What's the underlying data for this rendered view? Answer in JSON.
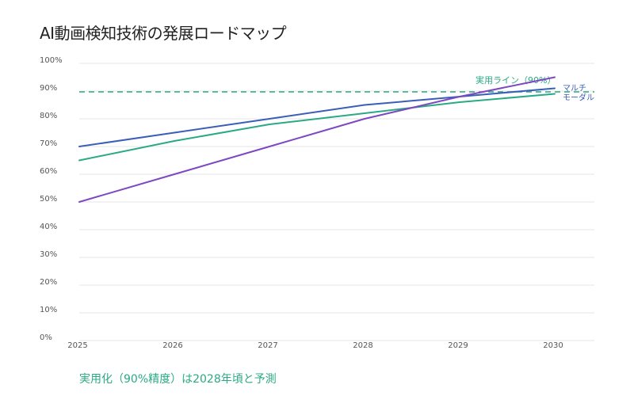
{
  "chart_data": {
    "type": "line",
    "title": "AI動画検知技術の発展ロードマップ",
    "xlabel": "",
    "ylabel": "",
    "x": [
      2025,
      2026,
      2027,
      2028,
      2029,
      2030
    ],
    "y_ticks": [
      "0%",
      "10%",
      "20%",
      "30%",
      "40%",
      "50%",
      "60%",
      "70%",
      "80%",
      "90%",
      "100%"
    ],
    "ylim": [
      0,
      100
    ],
    "grid": true,
    "series": [
      {
        "name": "",
        "color": "#3a5fb8",
        "values": [
          70,
          75,
          80,
          85,
          88,
          91
        ]
      },
      {
        "name": "",
        "color": "#2aaa84",
        "values": [
          65,
          72,
          78,
          82,
          86,
          89
        ]
      },
      {
        "name": "",
        "color": "#7d48c2",
        "values": [
          50,
          60,
          70,
          80,
          88,
          95
        ]
      }
    ],
    "series_label_lines": [
      "マルチ",
      "モーダル"
    ],
    "series_label_color": "#3a5fb8",
    "reference_line": {
      "value": 90,
      "label": "実用ライン（90%）",
      "color": "#2aaa84"
    },
    "footnote": "実用化（90%精度）は2028年頃と予測"
  }
}
